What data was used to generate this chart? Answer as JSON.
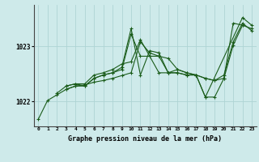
{
  "title": "Graphe pression niveau de la mer (hPa)",
  "background_color": "#ceeaea",
  "grid_color": "#aed4d4",
  "line_color": "#1a5c1a",
  "xlim": [
    -0.5,
    23.5
  ],
  "ylim": [
    1021.55,
    1023.75
  ],
  "yticks": [
    1022,
    1023
  ],
  "xticks": [
    0,
    1,
    2,
    3,
    4,
    5,
    6,
    7,
    8,
    9,
    10,
    11,
    12,
    13,
    14,
    15,
    16,
    17,
    18,
    19,
    20,
    21,
    22,
    23
  ],
  "series": [
    {
      "x": [
        0,
        1,
        2,
        3,
        4,
        5,
        6,
        7,
        8,
        9,
        10,
        11,
        12,
        13,
        14,
        15,
        16,
        17,
        18,
        19,
        20,
        21,
        22,
        23
      ],
      "y": [
        1021.68,
        1022.02,
        1022.12,
        1022.22,
        1022.28,
        1022.3,
        1022.35,
        1022.38,
        1022.42,
        1022.47,
        1022.52,
        1023.08,
        1022.88,
        1022.82,
        1022.78,
        1022.58,
        1022.52,
        1022.48,
        1022.42,
        1022.38,
        1022.42,
        1023.42,
        1023.38,
        1023.32
      ]
    },
    {
      "x": [
        2,
        3,
        4,
        5,
        6,
        7,
        8,
        9,
        10,
        11,
        12,
        13,
        14,
        15,
        16,
        17,
        18,
        22,
        23
      ],
      "y": [
        1022.15,
        1022.28,
        1022.32,
        1022.28,
        1022.42,
        1022.48,
        1022.52,
        1022.62,
        1023.32,
        1022.48,
        1022.92,
        1022.88,
        1022.52,
        1022.52,
        1022.48,
        1022.48,
        1022.08,
        1023.52,
        1023.38
      ]
    },
    {
      "x": [
        3,
        4,
        5,
        6,
        7,
        8,
        9,
        10,
        11,
        12,
        13,
        14,
        15,
        16,
        17,
        18,
        19,
        20,
        21,
        22
      ],
      "y": [
        1022.22,
        1022.28,
        1022.28,
        1022.42,
        1022.48,
        1022.52,
        1022.58,
        1023.22,
        1022.82,
        1022.82,
        1022.82,
        1022.52,
        1022.52,
        1022.48,
        1022.48,
        1022.08,
        1022.08,
        1022.42,
        1023.02,
        1023.38
      ]
    },
    {
      "x": [
        3,
        4,
        5,
        6,
        7,
        8,
        9,
        10,
        11,
        12,
        13,
        14,
        15,
        16,
        17,
        18,
        19,
        20,
        21,
        22,
        23
      ],
      "y": [
        1022.28,
        1022.32,
        1022.32,
        1022.48,
        1022.52,
        1022.58,
        1022.68,
        1022.72,
        1023.12,
        1022.82,
        1022.52,
        1022.52,
        1022.58,
        1022.52,
        1022.48,
        1022.42,
        1022.38,
        1022.48,
        1023.08,
        1023.42,
        1023.28
      ]
    }
  ]
}
